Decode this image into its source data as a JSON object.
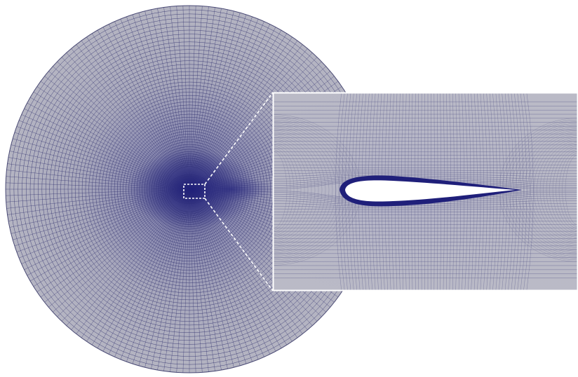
{
  "figure": {
    "mesh_color": "#1f1f7a",
    "mesh_light_color": "#9a9ab8",
    "background_color": "#ffffff",
    "highlight_box_style": "dashed",
    "highlight_box_color": "#ffffff",
    "inset_border_color": "#ffffff",
    "subject": "airfoil"
  }
}
